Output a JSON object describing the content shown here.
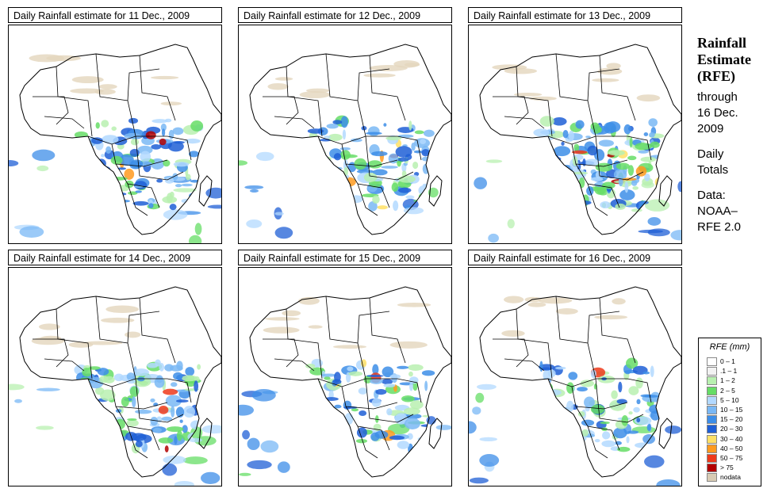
{
  "panels": [
    {
      "title": "Daily Rainfall estimate for  11 Dec., 2009",
      "intensity": 0.55
    },
    {
      "title": "Daily Rainfall estimate for  12 Dec., 2009",
      "intensity": 0.5
    },
    {
      "title": "Daily Rainfall estimate for  13 Dec., 2009",
      "intensity": 0.95
    },
    {
      "title": "Daily Rainfall estimate for  14 Dec., 2009",
      "intensity": 0.75
    },
    {
      "title": "Daily Rainfall estimate for  15 Dec., 2009",
      "intensity": 0.45
    },
    {
      "title": "Daily Rainfall estimate for  16 Dec., 2009",
      "intensity": 0.5
    }
  ],
  "side": {
    "title_line1": "Rainfall",
    "title_line2": "Estimate",
    "title_line3": "(RFE)",
    "through": "through",
    "date_line1": "16 Dec.",
    "date_line2": "2009",
    "daily1": "Daily",
    "daily2": "Totals",
    "data1": "Data:",
    "data2": "NOAA–",
    "data3": "RFE 2.0"
  },
  "legend": {
    "title": "RFE (mm)",
    "items": [
      {
        "label": "0 – 1",
        "color": "#ffffff"
      },
      {
        "label": ".1 – 1",
        "color": "#f2f2f2"
      },
      {
        "label": "1 – 2",
        "color": "#b8f0b0"
      },
      {
        "label": "2 – 5",
        "color": "#66dd66"
      },
      {
        "label": "5 – 10",
        "color": "#b3d9ff"
      },
      {
        "label": "10 – 15",
        "color": "#7ab8f5"
      },
      {
        "label": "15 – 20",
        "color": "#3d8ee8"
      },
      {
        "label": "20 – 30",
        "color": "#1f5fd6"
      },
      {
        "label": "30 – 40",
        "color": "#ffe066"
      },
      {
        "label": "40 – 50",
        "color": "#ff9a1f"
      },
      {
        "label": "50 – 75",
        "color": "#ee3a1a"
      },
      {
        "label": "> 75",
        "color": "#b30000"
      },
      {
        "label": "nodata",
        "color": "#d8cbb4"
      }
    ]
  }
}
